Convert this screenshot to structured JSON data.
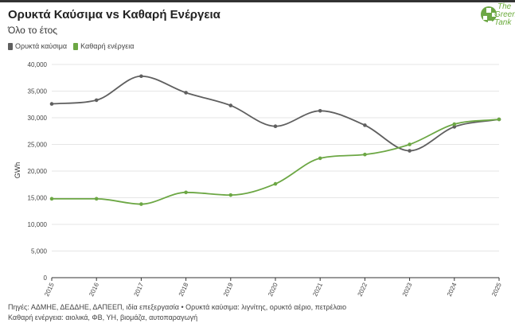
{
  "title": "Ορυκτά Καύσιμα vs Καθαρή Ενέργεια",
  "subtitle": "Όλο το έτος",
  "logo": {
    "line1": "The",
    "line2": "Green",
    "line3": "Tank"
  },
  "colors": {
    "fossil": "#5f5f5f",
    "clean": "#6ca744",
    "grid": "#e6e6e6",
    "axis": "#333333"
  },
  "footer": {
    "line1": "Πηγές: ΑΔΜΗΕ, ΔΕΔΔΗΕ, ΔΑΠΕΕΠ, ιδία επεξεργασία • Ορυκτά καύσιμα: λιγνίτης, ορυκτό αέριο, πετρέλαιο",
    "line2": "Καθαρή ενέργεια: αιολικά, ΦΒ, ΥΗ, βιομάζα, αυτοπαραγωγή"
  },
  "chart_data": {
    "type": "line",
    "x": [
      "2015",
      "2016",
      "2017",
      "2018",
      "2019",
      "2020",
      "2021",
      "2022",
      "2023",
      "2024",
      "2025"
    ],
    "series": [
      {
        "name": "Ορυκτά καύσιμα",
        "color": "#5f5f5f",
        "values": [
          32600,
          33300,
          37800,
          34700,
          32300,
          28400,
          31300,
          28600,
          23800,
          28300,
          29700
        ]
      },
      {
        "name": "Καθαρή ενέργεια",
        "color": "#6ca744",
        "values": [
          14800,
          14800,
          13800,
          16000,
          15500,
          17600,
          22400,
          23100,
          25000,
          28800,
          29700
        ]
      }
    ],
    "ylabel": "GWh",
    "ylim": [
      0,
      40000
    ],
    "yticks": [
      "0",
      "5,000",
      "10,000",
      "15,000",
      "20,000",
      "25,000",
      "30,000",
      "35,000",
      "40,000"
    ],
    "ytick_values": [
      0,
      5000,
      10000,
      15000,
      20000,
      25000,
      30000,
      35000,
      40000
    ],
    "grid": true,
    "legend": "top-left"
  }
}
